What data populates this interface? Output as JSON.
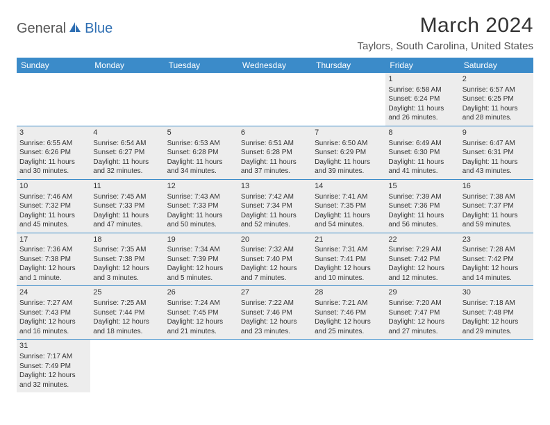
{
  "logo": {
    "part1": "General",
    "part2": "Blue"
  },
  "title": "March 2024",
  "location": "Taylors, South Carolina, United States",
  "daynames": [
    "Sunday",
    "Monday",
    "Tuesday",
    "Wednesday",
    "Thursday",
    "Friday",
    "Saturday"
  ],
  "colors": {
    "header_bg": "#3b8bc9",
    "shade_bg": "#ededed",
    "logo_blue": "#2f6fb3"
  },
  "weeks": [
    [
      {
        "day": "",
        "shade": false
      },
      {
        "day": "",
        "shade": false
      },
      {
        "day": "",
        "shade": false
      },
      {
        "day": "",
        "shade": false
      },
      {
        "day": "",
        "shade": false
      },
      {
        "day": "1",
        "shade": true,
        "sunrise": "Sunrise: 6:58 AM",
        "sunset": "Sunset: 6:24 PM",
        "daylight": "Daylight: 11 hours and 26 minutes."
      },
      {
        "day": "2",
        "shade": true,
        "sunrise": "Sunrise: 6:57 AM",
        "sunset": "Sunset: 6:25 PM",
        "daylight": "Daylight: 11 hours and 28 minutes."
      }
    ],
    [
      {
        "day": "3",
        "shade": true,
        "sunrise": "Sunrise: 6:55 AM",
        "sunset": "Sunset: 6:26 PM",
        "daylight": "Daylight: 11 hours and 30 minutes."
      },
      {
        "day": "4",
        "shade": true,
        "sunrise": "Sunrise: 6:54 AM",
        "sunset": "Sunset: 6:27 PM",
        "daylight": "Daylight: 11 hours and 32 minutes."
      },
      {
        "day": "5",
        "shade": true,
        "sunrise": "Sunrise: 6:53 AM",
        "sunset": "Sunset: 6:28 PM",
        "daylight": "Daylight: 11 hours and 34 minutes."
      },
      {
        "day": "6",
        "shade": true,
        "sunrise": "Sunrise: 6:51 AM",
        "sunset": "Sunset: 6:28 PM",
        "daylight": "Daylight: 11 hours and 37 minutes."
      },
      {
        "day": "7",
        "shade": true,
        "sunrise": "Sunrise: 6:50 AM",
        "sunset": "Sunset: 6:29 PM",
        "daylight": "Daylight: 11 hours and 39 minutes."
      },
      {
        "day": "8",
        "shade": true,
        "sunrise": "Sunrise: 6:49 AM",
        "sunset": "Sunset: 6:30 PM",
        "daylight": "Daylight: 11 hours and 41 minutes."
      },
      {
        "day": "9",
        "shade": true,
        "sunrise": "Sunrise: 6:47 AM",
        "sunset": "Sunset: 6:31 PM",
        "daylight": "Daylight: 11 hours and 43 minutes."
      }
    ],
    [
      {
        "day": "10",
        "shade": true,
        "sunrise": "Sunrise: 7:46 AM",
        "sunset": "Sunset: 7:32 PM",
        "daylight": "Daylight: 11 hours and 45 minutes."
      },
      {
        "day": "11",
        "shade": true,
        "sunrise": "Sunrise: 7:45 AM",
        "sunset": "Sunset: 7:33 PM",
        "daylight": "Daylight: 11 hours and 47 minutes."
      },
      {
        "day": "12",
        "shade": true,
        "sunrise": "Sunrise: 7:43 AM",
        "sunset": "Sunset: 7:33 PM",
        "daylight": "Daylight: 11 hours and 50 minutes."
      },
      {
        "day": "13",
        "shade": true,
        "sunrise": "Sunrise: 7:42 AM",
        "sunset": "Sunset: 7:34 PM",
        "daylight": "Daylight: 11 hours and 52 minutes."
      },
      {
        "day": "14",
        "shade": true,
        "sunrise": "Sunrise: 7:41 AM",
        "sunset": "Sunset: 7:35 PM",
        "daylight": "Daylight: 11 hours and 54 minutes."
      },
      {
        "day": "15",
        "shade": true,
        "sunrise": "Sunrise: 7:39 AM",
        "sunset": "Sunset: 7:36 PM",
        "daylight": "Daylight: 11 hours and 56 minutes."
      },
      {
        "day": "16",
        "shade": true,
        "sunrise": "Sunrise: 7:38 AM",
        "sunset": "Sunset: 7:37 PM",
        "daylight": "Daylight: 11 hours and 59 minutes."
      }
    ],
    [
      {
        "day": "17",
        "shade": true,
        "sunrise": "Sunrise: 7:36 AM",
        "sunset": "Sunset: 7:38 PM",
        "daylight": "Daylight: 12 hours and 1 minute."
      },
      {
        "day": "18",
        "shade": true,
        "sunrise": "Sunrise: 7:35 AM",
        "sunset": "Sunset: 7:38 PM",
        "daylight": "Daylight: 12 hours and 3 minutes."
      },
      {
        "day": "19",
        "shade": true,
        "sunrise": "Sunrise: 7:34 AM",
        "sunset": "Sunset: 7:39 PM",
        "daylight": "Daylight: 12 hours and 5 minutes."
      },
      {
        "day": "20",
        "shade": true,
        "sunrise": "Sunrise: 7:32 AM",
        "sunset": "Sunset: 7:40 PM",
        "daylight": "Daylight: 12 hours and 7 minutes."
      },
      {
        "day": "21",
        "shade": true,
        "sunrise": "Sunrise: 7:31 AM",
        "sunset": "Sunset: 7:41 PM",
        "daylight": "Daylight: 12 hours and 10 minutes."
      },
      {
        "day": "22",
        "shade": true,
        "sunrise": "Sunrise: 7:29 AM",
        "sunset": "Sunset: 7:42 PM",
        "daylight": "Daylight: 12 hours and 12 minutes."
      },
      {
        "day": "23",
        "shade": true,
        "sunrise": "Sunrise: 7:28 AM",
        "sunset": "Sunset: 7:42 PM",
        "daylight": "Daylight: 12 hours and 14 minutes."
      }
    ],
    [
      {
        "day": "24",
        "shade": true,
        "sunrise": "Sunrise: 7:27 AM",
        "sunset": "Sunset: 7:43 PM",
        "daylight": "Daylight: 12 hours and 16 minutes."
      },
      {
        "day": "25",
        "shade": true,
        "sunrise": "Sunrise: 7:25 AM",
        "sunset": "Sunset: 7:44 PM",
        "daylight": "Daylight: 12 hours and 18 minutes."
      },
      {
        "day": "26",
        "shade": true,
        "sunrise": "Sunrise: 7:24 AM",
        "sunset": "Sunset: 7:45 PM",
        "daylight": "Daylight: 12 hours and 21 minutes."
      },
      {
        "day": "27",
        "shade": true,
        "sunrise": "Sunrise: 7:22 AM",
        "sunset": "Sunset: 7:46 PM",
        "daylight": "Daylight: 12 hours and 23 minutes."
      },
      {
        "day": "28",
        "shade": true,
        "sunrise": "Sunrise: 7:21 AM",
        "sunset": "Sunset: 7:46 PM",
        "daylight": "Daylight: 12 hours and 25 minutes."
      },
      {
        "day": "29",
        "shade": true,
        "sunrise": "Sunrise: 7:20 AM",
        "sunset": "Sunset: 7:47 PM",
        "daylight": "Daylight: 12 hours and 27 minutes."
      },
      {
        "day": "30",
        "shade": true,
        "sunrise": "Sunrise: 7:18 AM",
        "sunset": "Sunset: 7:48 PM",
        "daylight": "Daylight: 12 hours and 29 minutes."
      }
    ],
    [
      {
        "day": "31",
        "shade": true,
        "sunrise": "Sunrise: 7:17 AM",
        "sunset": "Sunset: 7:49 PM",
        "daylight": "Daylight: 12 hours and 32 minutes."
      },
      {
        "day": "",
        "shade": false
      },
      {
        "day": "",
        "shade": false
      },
      {
        "day": "",
        "shade": false
      },
      {
        "day": "",
        "shade": false
      },
      {
        "day": "",
        "shade": false
      },
      {
        "day": "",
        "shade": false
      }
    ]
  ]
}
